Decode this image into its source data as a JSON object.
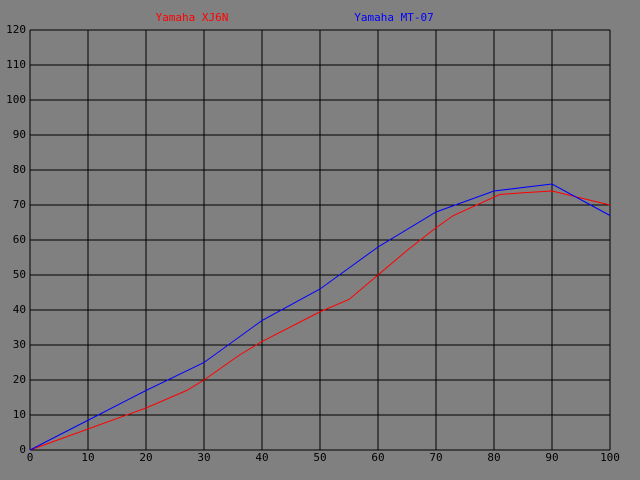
{
  "chart_data": {
    "type": "line",
    "series": [
      {
        "name": "Yamaha XJ6N",
        "color": "#ff0000",
        "x": [
          0,
          10,
          20,
          27,
          30,
          36,
          40,
          50,
          55,
          60,
          65,
          70,
          73,
          81,
          85,
          90,
          100
        ],
        "values": [
          0,
          6,
          12,
          17,
          20,
          27,
          31,
          39.5,
          43,
          50,
          57,
          63.5,
          67,
          73,
          73.5,
          74,
          70
        ]
      },
      {
        "name": "Yamaha MT-07",
        "color": "#0000ff",
        "x": [
          0,
          10,
          20,
          30,
          40,
          50,
          55,
          60,
          70,
          80,
          90,
          100
        ],
        "values": [
          0,
          8.5,
          17,
          25,
          37,
          46,
          52,
          58,
          68,
          74,
          76,
          67
        ]
      }
    ],
    "xlim": [
      0,
      100
    ],
    "xticks": [
      0,
      10,
      20,
      30,
      40,
      50,
      60,
      70,
      80,
      90,
      100
    ],
    "ylim": [
      0,
      120
    ],
    "yticks": [
      0,
      10,
      20,
      30,
      40,
      50,
      60,
      70,
      80,
      90,
      100,
      110,
      120
    ],
    "grid": true
  }
}
